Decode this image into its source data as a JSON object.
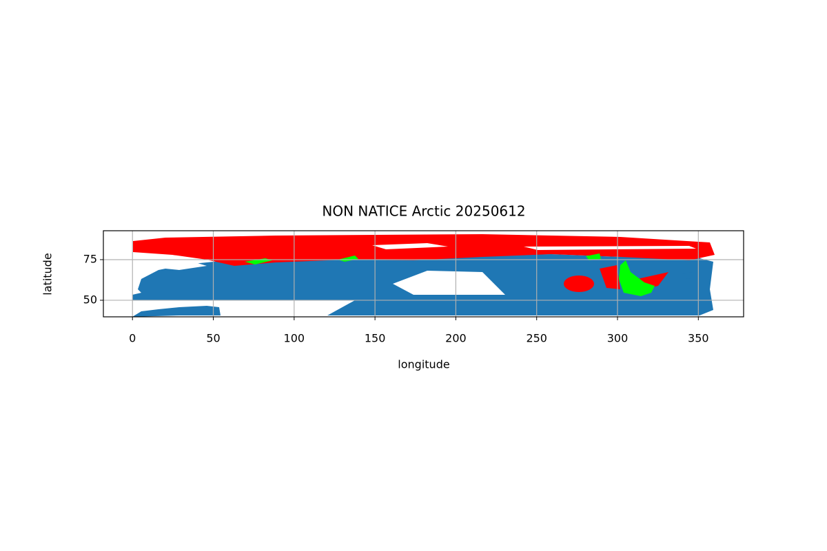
{
  "chart_data": {
    "type": "map",
    "title": "NON NATICE Arctic  20250612",
    "xlabel": "longitude",
    "ylabel": "latitude",
    "xlim": [
      -18,
      378
    ],
    "ylim": [
      39.8,
      92.8
    ],
    "xticks": [
      0,
      50,
      100,
      150,
      200,
      250,
      300,
      350
    ],
    "yticks": [
      50,
      75
    ],
    "grid": true
  }
}
